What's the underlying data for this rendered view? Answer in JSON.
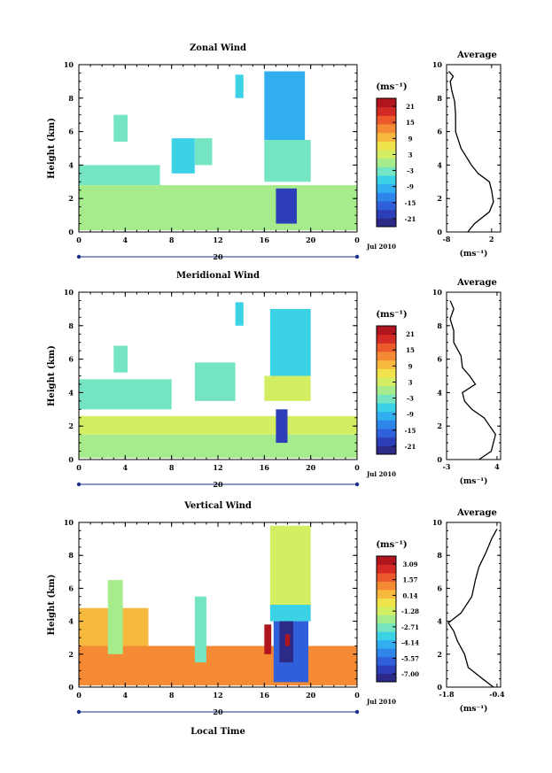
{
  "chart_data": [
    {
      "type": "heatmap",
      "title": "Zonal Wind",
      "xlabel": "",
      "ylabel": "Height (km)",
      "x_ticks": [
        "0",
        "4",
        "8",
        "12",
        "16",
        "20",
        "0"
      ],
      "y_ticks": [
        "0",
        "2",
        "4",
        "6",
        "8",
        "10"
      ],
      "xlim": [
        0,
        24
      ],
      "ylim": [
        0,
        10
      ],
      "date_day": "20",
      "date_month": "Jul 2010",
      "colorbar": {
        "unit": "(ms⁻¹)",
        "ticks": [
          "21",
          "15",
          "9",
          "3",
          "-3",
          "-9",
          "-15",
          "-21"
        ],
        "range": [
          -24,
          24
        ]
      },
      "profile": {
        "title": "Average",
        "xlabel": "(ms⁻¹)",
        "x_ticks": [
          "-8",
          "2"
        ],
        "xlim": [
          -8,
          4
        ],
        "y_ticks": [
          "0",
          "2",
          "4",
          "6",
          "8",
          "10"
        ],
        "points": [
          [
            -3.3,
            0.0
          ],
          [
            -1.8,
            0.5
          ],
          [
            1.5,
            1.2
          ],
          [
            2.4,
            1.8
          ],
          [
            2.0,
            2.5
          ],
          [
            1.5,
            3.0
          ],
          [
            -1.0,
            3.5
          ],
          [
            -2.5,
            4.0
          ],
          [
            -4.8,
            5.0
          ],
          [
            -6.0,
            6.0
          ],
          [
            -6.0,
            7.0
          ],
          [
            -6.2,
            7.8
          ],
          [
            -6.8,
            8.4
          ],
          [
            -7.2,
            9.0
          ],
          [
            -6.5,
            9.3
          ],
          [
            -7.5,
            9.6
          ]
        ]
      },
      "field": [
        {
          "x0": 0,
          "x1": 24,
          "y0": 0.1,
          "y1": 1.5,
          "value": -1
        },
        {
          "x0": 0,
          "x1": 24,
          "y0": 1.5,
          "y1": 2.8,
          "value": 1
        },
        {
          "x0": 0,
          "x1": 7,
          "y0": 2.8,
          "y1": 4.0,
          "value": -3
        },
        {
          "x0": 8,
          "x1": 10,
          "y0": 3.5,
          "y1": 5.6,
          "value": -6
        },
        {
          "x0": 10,
          "x1": 11.5,
          "y0": 4.0,
          "y1": 5.6,
          "value": -2
        },
        {
          "x0": 3,
          "x1": 4.2,
          "y0": 5.4,
          "y1": 7.0,
          "value": -4
        },
        {
          "x0": 16,
          "x1": 19.5,
          "y0": 5.5,
          "y1": 9.6,
          "value": -10
        },
        {
          "x0": 16,
          "x1": 20,
          "y0": 3.0,
          "y1": 5.5,
          "value": -4
        },
        {
          "x0": 17,
          "x1": 18.8,
          "y0": 0.5,
          "y1": 2.6,
          "value": -20
        },
        {
          "x0": 13.5,
          "x1": 14.2,
          "y0": 8.0,
          "y1": 9.4,
          "value": -7
        }
      ]
    },
    {
      "type": "heatmap",
      "title": "Meridional Wind",
      "xlabel": "",
      "ylabel": "Height (km)",
      "x_ticks": [
        "0",
        "4",
        "8",
        "12",
        "16",
        "20",
        "0"
      ],
      "y_ticks": [
        "0",
        "2",
        "4",
        "6",
        "8",
        "10"
      ],
      "xlim": [
        0,
        24
      ],
      "ylim": [
        0,
        10
      ],
      "date_day": "20",
      "date_month": "Jul 2010",
      "colorbar": {
        "unit": "(ms⁻¹)",
        "ticks": [
          "21",
          "15",
          "9",
          "3",
          "-3",
          "-9",
          "-15",
          "-21"
        ],
        "range": [
          -24,
          24
        ]
      },
      "profile": {
        "title": "Average",
        "xlabel": "(ms⁻¹)",
        "x_ticks": [
          "-3",
          "4"
        ],
        "xlim": [
          -3,
          4.5
        ],
        "y_ticks": [
          "0",
          "2",
          "4",
          "6",
          "8",
          "10"
        ],
        "points": [
          [
            1.5,
            0.0
          ],
          [
            3.2,
            0.5
          ],
          [
            3.8,
            1.5
          ],
          [
            2.2,
            2.5
          ],
          [
            0.5,
            3.0
          ],
          [
            -0.5,
            3.5
          ],
          [
            -0.8,
            4.0
          ],
          [
            1.0,
            4.5
          ],
          [
            0.2,
            5.0
          ],
          [
            -0.8,
            5.5
          ],
          [
            -1.0,
            6.2
          ],
          [
            -2.0,
            7.0
          ],
          [
            -2.0,
            7.7
          ],
          [
            -2.5,
            8.4
          ],
          [
            -2.0,
            9.0
          ],
          [
            -2.5,
            9.5
          ]
        ]
      },
      "field": [
        {
          "x0": 0,
          "x1": 24,
          "y0": 0.1,
          "y1": 1.5,
          "value": 1
        },
        {
          "x0": 0,
          "x1": 24,
          "y0": 1.5,
          "y1": 2.6,
          "value": 2
        },
        {
          "x0": 0,
          "x1": 8,
          "y0": 3.0,
          "y1": 4.8,
          "value": -4
        },
        {
          "x0": 3,
          "x1": 4.2,
          "y0": 5.2,
          "y1": 6.8,
          "value": -4
        },
        {
          "x0": 10,
          "x1": 13.5,
          "y0": 3.5,
          "y1": 5.8,
          "value": -2
        },
        {
          "x0": 16.5,
          "x1": 20,
          "y0": 5.0,
          "y1": 9.0,
          "value": -5
        },
        {
          "x0": 16,
          "x1": 20,
          "y0": 3.5,
          "y1": 5.0,
          "value": 2
        },
        {
          "x0": 17,
          "x1": 18,
          "y0": 1.0,
          "y1": 3.0,
          "value": -18
        },
        {
          "x0": 13.5,
          "x1": 14.2,
          "y0": 8.0,
          "y1": 9.4,
          "value": -7
        }
      ]
    },
    {
      "type": "heatmap",
      "title": "Vertical Wind",
      "xlabel": "Local Time",
      "ylabel": "Height (km)",
      "x_ticks": [
        "0",
        "4",
        "8",
        "12",
        "16",
        "20",
        "0"
      ],
      "y_ticks": [
        "0",
        "2",
        "4",
        "6",
        "8",
        "10"
      ],
      "xlim": [
        0,
        24
      ],
      "ylim": [
        0,
        10
      ],
      "date_day": "20",
      "date_month": "Jul 2010",
      "colorbar": {
        "unit": "(ms⁻¹)",
        "ticks": [
          "3.09",
          "1.57",
          "0.14",
          "-1.28",
          "-2.71",
          "-4.14",
          "-5.57",
          "-7.00"
        ],
        "range": [
          -7.0,
          3.09
        ]
      },
      "profile": {
        "title": "Average",
        "xlabel": "(ms⁻¹)",
        "x_ticks": [
          "-1.8",
          "-0.4"
        ],
        "xlim": [
          -1.8,
          -0.3
        ],
        "y_ticks": [
          "0",
          "2",
          "4",
          "6",
          "8",
          "10"
        ],
        "points": [
          [
            -0.5,
            0.0
          ],
          [
            -0.8,
            0.5
          ],
          [
            -1.2,
            1.2
          ],
          [
            -1.3,
            2.0
          ],
          [
            -1.5,
            2.8
          ],
          [
            -1.6,
            3.4
          ],
          [
            -1.75,
            3.9
          ],
          [
            -1.4,
            4.5
          ],
          [
            -1.1,
            5.5
          ],
          [
            -1.0,
            6.5
          ],
          [
            -0.9,
            7.3
          ],
          [
            -0.7,
            8.2
          ],
          [
            -0.55,
            9.0
          ],
          [
            -0.4,
            9.6
          ]
        ]
      },
      "field": [
        {
          "x0": 0,
          "x1": 24,
          "y0": 0.1,
          "y1": 2.5,
          "value": 0.5
        },
        {
          "x0": 0,
          "x1": 6,
          "y0": 2.5,
          "y1": 4.8,
          "value": 0.2
        },
        {
          "x0": 2.5,
          "x1": 3.8,
          "y0": 2.0,
          "y1": 6.5,
          "value": -2.0
        },
        {
          "x0": 10,
          "x1": 11,
          "y0": 1.5,
          "y1": 5.5,
          "value": -2.5
        },
        {
          "x0": 16.5,
          "x1": 20,
          "y0": 5.0,
          "y1": 9.8,
          "value": -1.0
        },
        {
          "x0": 16.5,
          "x1": 20,
          "y0": 4.0,
          "y1": 5.0,
          "value": -3.0
        },
        {
          "x0": 16.8,
          "x1": 19.8,
          "y0": 0.3,
          "y1": 4.0,
          "value": -5.5
        },
        {
          "x0": 17.3,
          "x1": 18.5,
          "y0": 1.5,
          "y1": 4.0,
          "value": -6.8
        },
        {
          "x0": 16.0,
          "x1": 16.6,
          "y0": 2.0,
          "y1": 3.8,
          "value": 2.5
        },
        {
          "x0": 17.8,
          "x1": 18.2,
          "y0": 2.5,
          "y1": 3.2,
          "value": 3.0
        }
      ]
    }
  ]
}
